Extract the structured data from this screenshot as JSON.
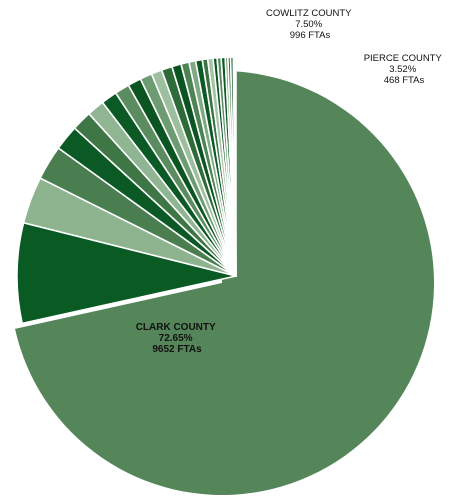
{
  "chart_data": {
    "type": "pie",
    "title": "",
    "unit": "FTAs",
    "slices": [
      {
        "label": "CLARK COUNTY",
        "percent": "72.65%",
        "ftas": "9652 FTAs",
        "value": 72.65,
        "color": "#55865a",
        "exploded": false
      },
      {
        "label": "COWLITZ COUNTY",
        "percent": "7.50%",
        "ftas": "996 FTAs",
        "value": 7.5,
        "color": "#0a5a24",
        "exploded": true
      },
      {
        "label": "PIERCE COUNTY",
        "percent": "3.52%",
        "ftas": "468 FTAs",
        "value": 3.52,
        "color": "#8db38f",
        "exploded": true
      },
      {
        "label": "",
        "value": 2.6,
        "color": "#4a7e50",
        "exploded": true
      },
      {
        "label": "",
        "value": 1.9,
        "color": "#0b5a25",
        "exploded": true
      },
      {
        "label": "",
        "value": 1.5,
        "color": "#3f7646",
        "exploded": true
      },
      {
        "label": "",
        "value": 1.3,
        "color": "#8fb592",
        "exploded": true
      },
      {
        "label": "",
        "value": 1.2,
        "color": "#0b5a25",
        "exploded": true
      },
      {
        "label": "",
        "value": 1.1,
        "color": "#5a8c5f",
        "exploded": true
      },
      {
        "label": "",
        "value": 1.0,
        "color": "#0a5522",
        "exploded": true
      },
      {
        "label": "",
        "value": 0.9,
        "color": "#6e9c72",
        "exploded": true
      },
      {
        "label": "",
        "value": 0.8,
        "color": "#9cbf9e",
        "exploded": true
      },
      {
        "label": "",
        "value": 0.8,
        "color": "#2f6b38",
        "exploded": true
      },
      {
        "label": "",
        "value": 0.7,
        "color": "#0a5522",
        "exploded": true
      },
      {
        "label": "",
        "value": 0.6,
        "color": "#4d8453",
        "exploded": true
      },
      {
        "label": "",
        "value": 0.5,
        "color": "#7faa83",
        "exploded": true
      },
      {
        "label": "",
        "value": 0.5,
        "color": "#0b5a25",
        "exploded": true
      },
      {
        "label": "",
        "value": 0.4,
        "color": "#3a7341",
        "exploded": true
      },
      {
        "label": "",
        "value": 0.4,
        "color": "#a3c4a5",
        "exploded": true
      },
      {
        "label": "",
        "value": 0.3,
        "color": "#0a5522",
        "exploded": true
      },
      {
        "label": "",
        "value": 0.3,
        "color": "#5a8c5f",
        "exploded": true
      },
      {
        "label": "",
        "value": 0.3,
        "color": "#0b5a25",
        "exploded": true
      },
      {
        "label": "",
        "value": 0.2,
        "color": "#6e9c72",
        "exploded": true
      },
      {
        "label": "",
        "value": 0.2,
        "color": "#2f6b38",
        "exploded": true
      },
      {
        "label": "",
        "value": 0.2,
        "color": "#0a5522",
        "exploded": true
      },
      {
        "label": "",
        "value": 0.1,
        "color": "#7faa83",
        "exploded": true
      },
      {
        "label": "",
        "value": 0.1,
        "color": "#0b5a25",
        "exploded": true
      }
    ],
    "legend": "none",
    "start_angle_deg": 0,
    "direction": "clockwise-from-top"
  }
}
